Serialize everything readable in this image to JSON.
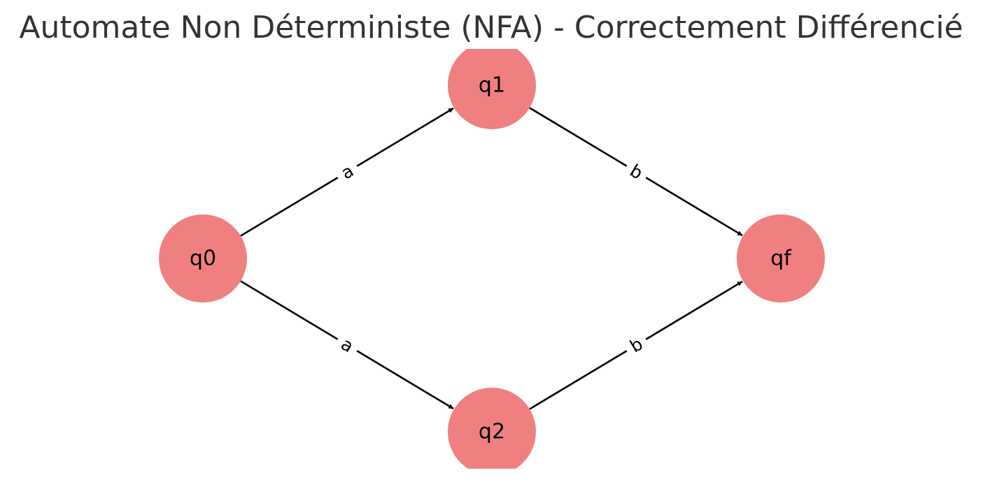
{
  "title": "Automate Non Déterministe (NFA) - Correctement Différencié",
  "colors": {
    "node_fill": "#f08080",
    "edge": "#000000",
    "title": "#333333",
    "background": "#ffffff"
  },
  "states": [
    {
      "id": "q0",
      "label": "q0"
    },
    {
      "id": "q1",
      "label": "q1"
    },
    {
      "id": "q2",
      "label": "q2"
    },
    {
      "id": "qf",
      "label": "qf"
    }
  ],
  "transitions": [
    {
      "from": "q0",
      "to": "q1",
      "label": "a"
    },
    {
      "from": "q0",
      "to": "q2",
      "label": "a"
    },
    {
      "from": "q1",
      "to": "qf",
      "label": "b"
    },
    {
      "from": "q2",
      "to": "qf",
      "label": "b"
    }
  ]
}
